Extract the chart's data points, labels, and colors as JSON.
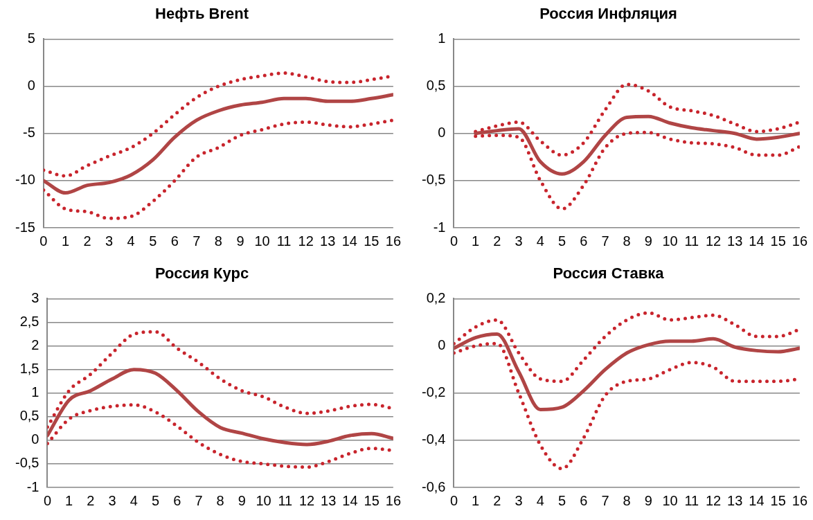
{
  "chart_data": [
    {
      "type": "line",
      "title": "Нефть Brent",
      "x": [
        0,
        1,
        2,
        3,
        4,
        5,
        6,
        7,
        8,
        9,
        10,
        11,
        12,
        13,
        14,
        15,
        16
      ],
      "xlim": [
        0,
        16
      ],
      "xticks": [
        0,
        1,
        2,
        3,
        4,
        5,
        6,
        7,
        8,
        9,
        10,
        11,
        12,
        13,
        14,
        15,
        16
      ],
      "ylim": [
        -15,
        5
      ],
      "yticks": [
        -15,
        -10,
        -5,
        0,
        5
      ],
      "grid": "y",
      "legend": false,
      "marker": "none",
      "series": [
        {
          "color": "#b04545",
          "line_style": "solid",
          "values": [
            -10,
            -11.3,
            -10.5,
            -10.2,
            -9.4,
            -7.8,
            -5.4,
            -3.6,
            -2.6,
            -2.0,
            -1.7,
            -1.3,
            -1.3,
            -1.6,
            -1.6,
            -1.3,
            -0.9
          ]
        },
        {
          "color": "#c8242c",
          "line_style": "dotted",
          "values": [
            -8.9,
            -9.5,
            -8.4,
            -7.4,
            -6.5,
            -5.0,
            -3.0,
            -1.2,
            0,
            0.7,
            1.1,
            1.4,
            1.0,
            0.5,
            0.4,
            0.7,
            1.1
          ]
        },
        {
          "color": "#c8242c",
          "line_style": "dotted",
          "values": [
            -11.0,
            -13.0,
            -13.3,
            -14.0,
            -13.8,
            -12.2,
            -10.0,
            -7.5,
            -6.5,
            -5.2,
            -4.6,
            -4.0,
            -3.8,
            -4.1,
            -4.3,
            -4.0,
            -3.6
          ]
        }
      ]
    },
    {
      "type": "line",
      "title": "Россия Инфляция",
      "x": [
        1,
        2,
        3,
        4,
        5,
        6,
        7,
        8,
        9,
        10,
        11,
        12,
        13,
        14,
        15,
        16
      ],
      "xlim": [
        0,
        16
      ],
      "xticks": [
        0,
        1,
        2,
        3,
        4,
        5,
        6,
        7,
        8,
        9,
        10,
        11,
        12,
        13,
        14,
        15,
        16
      ],
      "ylim": [
        -1,
        1
      ],
      "yticks": [
        -1,
        {
          "value": -0.5,
          "label": "-0,5"
        },
        0,
        {
          "value": 0.5,
          "label": "0,5"
        },
        1
      ],
      "grid": "y",
      "legend": false,
      "marker": "none",
      "series": [
        {
          "color": "#b04545",
          "line_style": "solid",
          "values": [
            0,
            0.03,
            0.05,
            -0.3,
            -0.43,
            -0.3,
            -0.02,
            0.17,
            0.18,
            0.11,
            0.06,
            0.03,
            0.0,
            -0.06,
            -0.04,
            0
          ]
        },
        {
          "color": "#c8242c",
          "line_style": "dotted",
          "values": [
            0.02,
            0.08,
            0.12,
            -0.08,
            -0.23,
            -0.1,
            0.25,
            0.52,
            0.45,
            0.28,
            0.24,
            0.19,
            0.1,
            0.02,
            0.05,
            0.12
          ]
        },
        {
          "color": "#c8242c",
          "line_style": "dotted",
          "values": [
            -0.03,
            -0.02,
            -0.04,
            -0.5,
            -0.8,
            -0.55,
            -0.15,
            0.0,
            0.01,
            -0.06,
            -0.1,
            -0.11,
            -0.15,
            -0.23,
            -0.23,
            -0.14
          ]
        }
      ]
    },
    {
      "type": "line",
      "title": "Россия Курс",
      "x": [
        0,
        1,
        2,
        3,
        4,
        5,
        6,
        7,
        8,
        9,
        10,
        11,
        12,
        13,
        14,
        15,
        16
      ],
      "xlim": [
        0,
        16
      ],
      "xticks": [
        0,
        1,
        2,
        3,
        4,
        5,
        6,
        7,
        8,
        9,
        10,
        11,
        12,
        13,
        14,
        15,
        16
      ],
      "ylim": [
        -1,
        3
      ],
      "yticks": [
        -1,
        {
          "value": -0.5,
          "label": "-0,5"
        },
        0,
        {
          "value": 0.5,
          "label": "0,5"
        },
        1,
        {
          "value": 1.5,
          "label": "1,5"
        },
        2,
        {
          "value": 2.5,
          "label": "2,5"
        },
        3
      ],
      "grid": "y",
      "legend": false,
      "marker": "none",
      "series": [
        {
          "color": "#b04545",
          "line_style": "solid",
          "values": [
            0.1,
            0.85,
            1.05,
            1.3,
            1.5,
            1.42,
            1.05,
            0.6,
            0.27,
            0.15,
            0.03,
            -0.05,
            -0.09,
            -0.02,
            0.1,
            0.14,
            0.04
          ]
        },
        {
          "color": "#c8242c",
          "line_style": "dotted",
          "values": [
            0.28,
            1.05,
            1.4,
            1.85,
            2.25,
            2.3,
            1.95,
            1.65,
            1.3,
            1.05,
            0.92,
            0.7,
            0.57,
            0.62,
            0.72,
            0.76,
            0.67
          ]
        },
        {
          "color": "#c8242c",
          "line_style": "dotted",
          "values": [
            -0.07,
            0.45,
            0.63,
            0.72,
            0.75,
            0.6,
            0.3,
            -0.05,
            -0.3,
            -0.45,
            -0.5,
            -0.55,
            -0.57,
            -0.45,
            -0.28,
            -0.17,
            -0.22
          ]
        }
      ]
    },
    {
      "type": "line",
      "title": "Россия Ставка",
      "x": [
        0,
        1,
        2,
        3,
        4,
        5,
        6,
        7,
        8,
        9,
        10,
        11,
        12,
        13,
        14,
        15,
        16
      ],
      "xlim": [
        0,
        16
      ],
      "xticks": [
        0,
        1,
        2,
        3,
        4,
        5,
        6,
        7,
        8,
        9,
        10,
        11,
        12,
        13,
        14,
        15,
        16
      ],
      "ylim": [
        -0.6,
        0.2
      ],
      "yticks": [
        {
          "value": -0.6,
          "label": "-0,6"
        },
        {
          "value": -0.4,
          "label": "-0,4"
        },
        {
          "value": -0.2,
          "label": "-0,2"
        },
        0,
        {
          "value": 0.2,
          "label": "0,2"
        }
      ],
      "grid": "y",
      "legend": false,
      "marker": "none",
      "series": [
        {
          "color": "#b04545",
          "line_style": "solid",
          "values": [
            -0.01,
            0.035,
            0.05,
            -0.11,
            -0.27,
            -0.26,
            -0.19,
            -0.1,
            -0.03,
            0.005,
            0.02,
            0.02,
            0.03,
            -0.005,
            -0.02,
            -0.025,
            -0.01
          ]
        },
        {
          "color": "#c8242c",
          "line_style": "dotted",
          "values": [
            0.01,
            0.08,
            0.11,
            -0.03,
            -0.14,
            -0.15,
            -0.06,
            0.04,
            0.11,
            0.14,
            0.11,
            0.12,
            0.13,
            0.09,
            0.04,
            0.04,
            0.07
          ]
        },
        {
          "color": "#c8242c",
          "line_style": "dotted",
          "values": [
            -0.03,
            0.0,
            0.01,
            -0.2,
            -0.42,
            -0.52,
            -0.39,
            -0.21,
            -0.15,
            -0.14,
            -0.1,
            -0.07,
            -0.09,
            -0.15,
            -0.15,
            -0.15,
            -0.14
          ]
        }
      ]
    }
  ]
}
